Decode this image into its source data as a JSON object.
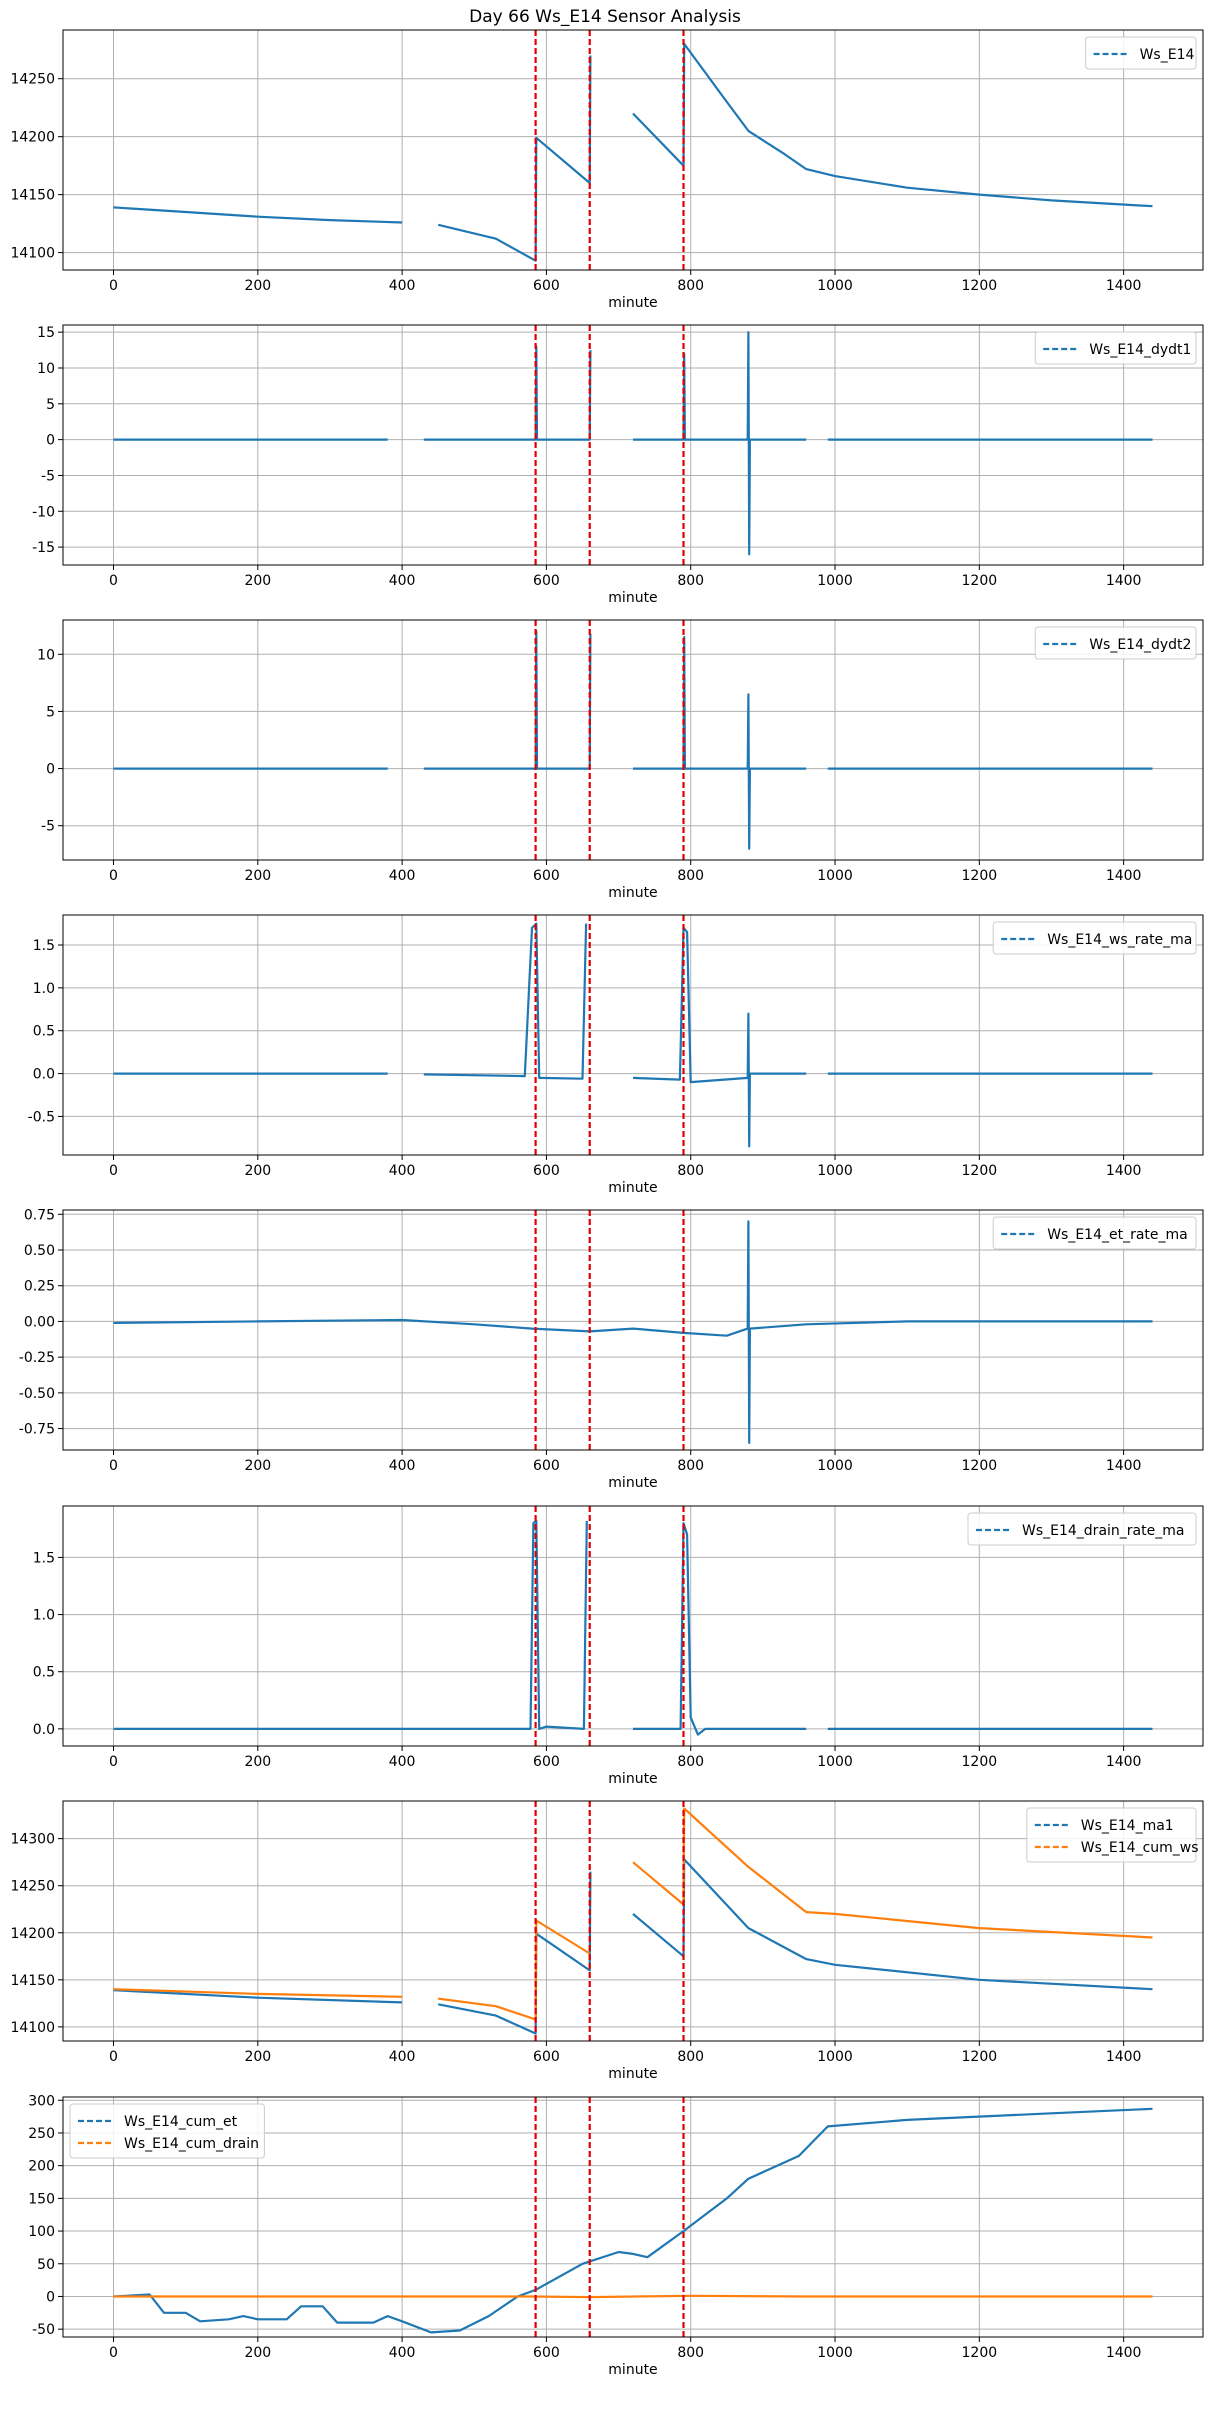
{
  "title": "Day 66 Ws_E14 Sensor Analysis",
  "colors": {
    "blue": "#1f77b4",
    "orange": "#ff7f0e",
    "marker": "#e00000",
    "grid": "#b0b0b0"
  },
  "chart_data": [
    {
      "type": "line",
      "xlabel": "minute",
      "xlim": [
        -70,
        1510
      ],
      "ylim": [
        14085,
        14292
      ],
      "xticks": [
        0,
        200,
        400,
        600,
        800,
        1000,
        1200,
        1400
      ],
      "yticks": [
        14100,
        14150,
        14200,
        14250
      ],
      "ytick_labels": [
        "14100",
        "14150",
        "14200",
        "14250"
      ],
      "vlines": [
        585,
        660,
        790
      ],
      "legend": "top-right",
      "series": [
        {
          "name": "Ws_E14",
          "color": "#1f77b4",
          "points": [
            [
              0,
              14139
            ],
            [
              100,
              14135
            ],
            [
              200,
              14131
            ],
            [
              300,
              14128
            ],
            [
              400,
              14126
            ],
            [
              420,
              null
            ],
            [
              450,
              14124
            ],
            [
              530,
              14112
            ],
            [
              585,
              14093
            ],
            [
              586,
              14199
            ],
            [
              660,
              14160
            ],
            [
              661,
              14270
            ],
            [
              662,
              null
            ],
            [
              720,
              14220
            ],
            [
              790,
              14175
            ],
            [
              791,
              14280
            ],
            [
              850,
              14230
            ],
            [
              880,
              14205
            ],
            [
              930,
              14185
            ],
            [
              960,
              14172
            ],
            [
              1000,
              14166
            ],
            [
              1100,
              14156
            ],
            [
              1200,
              14150
            ],
            [
              1300,
              14145
            ],
            [
              1440,
              14140
            ]
          ]
        }
      ]
    },
    {
      "type": "line",
      "xlabel": "minute",
      "xlim": [
        -70,
        1510
      ],
      "ylim": [
        -17.5,
        16
      ],
      "xticks": [
        0,
        200,
        400,
        600,
        800,
        1000,
        1200,
        1400
      ],
      "yticks": [
        -15,
        -10,
        -5,
        0,
        5,
        10,
        15
      ],
      "ytick_labels": [
        "-15",
        "-10",
        "-5",
        "0",
        "5",
        "10",
        "15"
      ],
      "vlines": [
        585,
        660,
        790
      ],
      "legend": "top-right",
      "series": [
        {
          "name": "Ws_E14_dydt1",
          "color": "#1f77b4",
          "points": [
            [
              0,
              0
            ],
            [
              380,
              0
            ],
            [
              390,
              null
            ],
            [
              430,
              0
            ],
            [
              585,
              0
            ],
            [
              586,
              13
            ],
            [
              587,
              0
            ],
            [
              660,
              0
            ],
            [
              661,
              12.5
            ],
            [
              662,
              null
            ],
            [
              720,
              0
            ],
            [
              790,
              0
            ],
            [
              791,
              12
            ],
            [
              792,
              0
            ],
            [
              879,
              0
            ],
            [
              880,
              15
            ],
            [
              881,
              -16
            ],
            [
              882,
              0
            ],
            [
              960,
              0
            ],
            [
              970,
              null
            ],
            [
              990,
              0
            ],
            [
              1440,
              0
            ]
          ]
        }
      ]
    },
    {
      "type": "line",
      "xlabel": "minute",
      "xlim": [
        -70,
        1510
      ],
      "ylim": [
        -8,
        13
      ],
      "xticks": [
        0,
        200,
        400,
        600,
        800,
        1000,
        1200,
        1400
      ],
      "yticks": [
        -5,
        0,
        5,
        10
      ],
      "ytick_labels": [
        "-5",
        "0",
        "5",
        "10"
      ],
      "vlines": [
        585,
        660,
        790
      ],
      "legend": "top-right",
      "series": [
        {
          "name": "Ws_E14_dydt2",
          "color": "#1f77b4",
          "points": [
            [
              0,
              0
            ],
            [
              380,
              0
            ],
            [
              390,
              null
            ],
            [
              430,
              0
            ],
            [
              585,
              0
            ],
            [
              586,
              12
            ],
            [
              587,
              0
            ],
            [
              660,
              0
            ],
            [
              661,
              11.8
            ],
            [
              662,
              null
            ],
            [
              720,
              0
            ],
            [
              790,
              0
            ],
            [
              791,
              11.5
            ],
            [
              792,
              0
            ],
            [
              879,
              0
            ],
            [
              880,
              6.5
            ],
            [
              881,
              -7
            ],
            [
              882,
              0
            ],
            [
              960,
              0
            ],
            [
              970,
              null
            ],
            [
              990,
              0
            ],
            [
              1440,
              0
            ]
          ]
        }
      ]
    },
    {
      "type": "line",
      "xlabel": "minute",
      "xlim": [
        -70,
        1510
      ],
      "ylim": [
        -0.95,
        1.85
      ],
      "xticks": [
        0,
        200,
        400,
        600,
        800,
        1000,
        1200,
        1400
      ],
      "yticks": [
        -0.5,
        0.0,
        0.5,
        1.0,
        1.5
      ],
      "ytick_labels": [
        "-0.5",
        "0.0",
        "0.5",
        "1.0",
        "1.5"
      ],
      "vlines": [
        585,
        660,
        790
      ],
      "legend": "top-right",
      "series": [
        {
          "name": "Ws_E14_ws_rate_ma",
          "color": "#1f77b4",
          "points": [
            [
              0,
              0
            ],
            [
              380,
              0
            ],
            [
              390,
              null
            ],
            [
              430,
              -0.01
            ],
            [
              570,
              -0.03
            ],
            [
              580,
              1.7
            ],
            [
              586,
              1.75
            ],
            [
              590,
              -0.05
            ],
            [
              650,
              -0.06
            ],
            [
              655,
              1.75
            ],
            [
              662,
              null
            ],
            [
              720,
              -0.05
            ],
            [
              785,
              -0.07
            ],
            [
              790,
              1.7
            ],
            [
              795,
              1.65
            ],
            [
              800,
              -0.1
            ],
            [
              879,
              -0.05
            ],
            [
              880,
              0.7
            ],
            [
              881,
              -0.85
            ],
            [
              882,
              0
            ],
            [
              960,
              0
            ],
            [
              970,
              null
            ],
            [
              990,
              0
            ],
            [
              1440,
              0
            ]
          ]
        }
      ]
    },
    {
      "type": "line",
      "xlabel": "minute",
      "xlim": [
        -70,
        1510
      ],
      "ylim": [
        -0.9,
        0.78
      ],
      "xticks": [
        0,
        200,
        400,
        600,
        800,
        1000,
        1200,
        1400
      ],
      "yticks": [
        -0.75,
        -0.5,
        -0.25,
        0.0,
        0.25,
        0.5,
        0.75
      ],
      "ytick_labels": [
        "-0.75",
        "-0.50",
        "-0.25",
        "0.00",
        "0.25",
        "0.50",
        "0.75"
      ],
      "vlines": [
        585,
        660,
        790
      ],
      "legend": "top-right",
      "series": [
        {
          "name": "Ws_E14_et_rate_ma",
          "color": "#1f77b4",
          "points": [
            [
              0,
              -0.01
            ],
            [
              200,
              0
            ],
            [
              400,
              0.01
            ],
            [
              500,
              -0.02
            ],
            [
              580,
              -0.05
            ],
            [
              660,
              -0.07
            ],
            [
              720,
              -0.05
            ],
            [
              790,
              -0.08
            ],
            [
              850,
              -0.1
            ],
            [
              879,
              -0.05
            ],
            [
              880,
              0.7
            ],
            [
              881,
              -0.85
            ],
            [
              882,
              -0.05
            ],
            [
              960,
              -0.02
            ],
            [
              1100,
              0
            ],
            [
              1440,
              0
            ]
          ]
        }
      ]
    },
    {
      "type": "line",
      "xlabel": "minute",
      "xlim": [
        -70,
        1510
      ],
      "ylim": [
        -0.15,
        1.95
      ],
      "xticks": [
        0,
        200,
        400,
        600,
        800,
        1000,
        1200,
        1400
      ],
      "yticks": [
        0.0,
        0.5,
        1.0,
        1.5
      ],
      "ytick_labels": [
        "0.0",
        "0.5",
        "1.0",
        "1.5"
      ],
      "vlines": [
        585,
        660,
        790
      ],
      "legend": "top-right",
      "series": [
        {
          "name": "Ws_E14_drain_rate_ma",
          "color": "#1f77b4",
          "points": [
            [
              0,
              0
            ],
            [
              578,
              0
            ],
            [
              582,
              1.8
            ],
            [
              586,
              1.82
            ],
            [
              590,
              0
            ],
            [
              600,
              0.02
            ],
            [
              652,
              0
            ],
            [
              656,
              1.82
            ],
            [
              662,
              null
            ],
            [
              720,
              0
            ],
            [
              786,
              0
            ],
            [
              790,
              1.8
            ],
            [
              795,
              1.7
            ],
            [
              800,
              0.1
            ],
            [
              810,
              -0.05
            ],
            [
              820,
              0
            ],
            [
              960,
              0
            ],
            [
              970,
              null
            ],
            [
              990,
              0
            ],
            [
              1440,
              0
            ]
          ]
        }
      ]
    },
    {
      "type": "line",
      "xlabel": "minute",
      "xlim": [
        -70,
        1510
      ],
      "ylim": [
        14085,
        14340
      ],
      "xticks": [
        0,
        200,
        400,
        600,
        800,
        1000,
        1200,
        1400
      ],
      "yticks": [
        14100,
        14150,
        14200,
        14250,
        14300
      ],
      "ytick_labels": [
        "14100",
        "14150",
        "14200",
        "14250",
        "14300"
      ],
      "vlines": [
        585,
        660,
        790
      ],
      "legend": "top-right",
      "series": [
        {
          "name": "Ws_E14_ma1",
          "color": "#1f77b4",
          "points": [
            [
              0,
              14139
            ],
            [
              200,
              14131
            ],
            [
              400,
              14126
            ],
            [
              420,
              null
            ],
            [
              450,
              14124
            ],
            [
              530,
              14112
            ],
            [
              585,
              14093
            ],
            [
              586,
              14199
            ],
            [
              660,
              14160
            ],
            [
              661,
              14265
            ],
            [
              662,
              null
            ],
            [
              720,
              14220
            ],
            [
              790,
              14175
            ],
            [
              791,
              14278
            ],
            [
              880,
              14205
            ],
            [
              960,
              14172
            ],
            [
              1000,
              14166
            ],
            [
              1200,
              14150
            ],
            [
              1440,
              14140
            ]
          ]
        },
        {
          "name": "Ws_E14_cum_ws",
          "color": "#ff7f0e",
          "points": [
            [
              0,
              14140
            ],
            [
              200,
              14135
            ],
            [
              400,
              14132
            ],
            [
              420,
              null
            ],
            [
              450,
              14130
            ],
            [
              530,
              14122
            ],
            [
              585,
              14108
            ],
            [
              586,
              14213
            ],
            [
              660,
              14178
            ],
            [
              662,
              null
            ],
            [
              720,
              14275
            ],
            [
              790,
              14230
            ],
            [
              791,
              14332
            ],
            [
              880,
              14270
            ],
            [
              960,
              14222
            ],
            [
              1000,
              14220
            ],
            [
              1200,
              14205
            ],
            [
              1440,
              14195
            ]
          ]
        }
      ]
    },
    {
      "type": "line",
      "xlabel": "minute",
      "xlim": [
        -70,
        1510
      ],
      "ylim": [
        -62,
        305
      ],
      "xticks": [
        0,
        200,
        400,
        600,
        800,
        1000,
        1200,
        1400
      ],
      "yticks": [
        -50,
        0,
        50,
        100,
        150,
        200,
        250,
        300
      ],
      "ytick_labels": [
        "-50",
        "0",
        "50",
        "100",
        "150",
        "200",
        "250",
        "300"
      ],
      "vlines": [
        585,
        660,
        790
      ],
      "legend": "top-left",
      "series": [
        {
          "name": "Ws_E14_cum_et",
          "color": "#1f77b4",
          "points": [
            [
              0,
              0
            ],
            [
              50,
              3
            ],
            [
              70,
              -25
            ],
            [
              100,
              -25
            ],
            [
              120,
              -38
            ],
            [
              160,
              -35
            ],
            [
              180,
              -30
            ],
            [
              200,
              -35
            ],
            [
              240,
              -35
            ],
            [
              260,
              -15
            ],
            [
              290,
              -15
            ],
            [
              310,
              -40
            ],
            [
              360,
              -40
            ],
            [
              380,
              -30
            ],
            [
              400,
              -38
            ],
            [
              440,
              -55
            ],
            [
              480,
              -52
            ],
            [
              520,
              -30
            ],
            [
              560,
              0
            ],
            [
              585,
              10
            ],
            [
              650,
              50
            ],
            [
              700,
              68
            ],
            [
              720,
              65
            ],
            [
              740,
              60
            ],
            [
              790,
              100
            ],
            [
              850,
              150
            ],
            [
              880,
              180
            ],
            [
              950,
              215
            ],
            [
              990,
              260
            ],
            [
              1100,
              270
            ],
            [
              1300,
              280
            ],
            [
              1440,
              287
            ]
          ]
        },
        {
          "name": "Ws_E14_cum_drain",
          "color": "#ff7f0e",
          "points": [
            [
              0,
              0
            ],
            [
              580,
              0
            ],
            [
              660,
              -1
            ],
            [
              800,
              1
            ],
            [
              960,
              0
            ],
            [
              1440,
              0
            ]
          ]
        }
      ]
    }
  ]
}
